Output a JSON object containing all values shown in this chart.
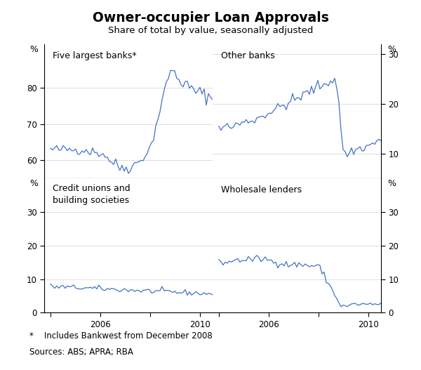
{
  "title": "Owner-occupier Loan Approvals",
  "subtitle": "Share of total by value, seasonally adjusted",
  "footnote1": "*    Includes Bankwest from December 2008",
  "footnote2": "Sources: ABS; APRA; RBA",
  "line_color": "#4472C4",
  "tl_label": "Five largest banks*",
  "tr_label": "Other banks",
  "bl_label": "Credit unions and\nbuilding societies",
  "br_label": "Wholesale lenders",
  "tl_ylim": [
    55,
    92
  ],
  "tl_yticks": [
    60,
    70,
    80
  ],
  "tl_yticklabels": [
    "60",
    "70",
    "80"
  ],
  "tr_ylim": [
    5,
    32
  ],
  "tr_yticks": [
    10,
    20,
    30
  ],
  "tr_yticklabels": [
    "10",
    "20",
    "30"
  ],
  "bl_ylim": [
    0,
    40
  ],
  "bl_yticks": [
    0,
    10,
    20,
    30
  ],
  "bl_yticklabels": [
    "0",
    "10",
    "20",
    "30"
  ],
  "br_ylim": [
    0,
    40
  ],
  "br_yticks": [
    0,
    10,
    20,
    30
  ],
  "br_yticklabels": [
    "0",
    "10",
    "20",
    "30"
  ],
  "xlim": [
    2003.75,
    2010.5
  ],
  "xticks": [
    2004,
    2006,
    2008,
    2010
  ],
  "top_xticklabels": [
    "",
    "",
    "",
    ""
  ],
  "bottom_xticklabels": [
    "",
    "2006",
    "",
    "2010"
  ]
}
